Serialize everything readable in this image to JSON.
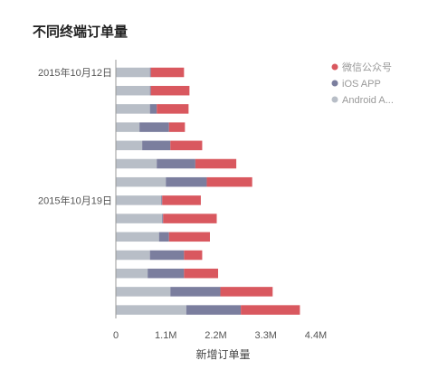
{
  "chart_data": {
    "type": "bar",
    "orientation": "horizontal",
    "stacked": true,
    "title": "不同终端订单量",
    "xlabel": "新增订单量",
    "ylabel": "",
    "y_tick_labels": [
      "2015年10月12日",
      "2015年10月19日"
    ],
    "y_tick_indices": [
      0,
      7
    ],
    "x_ticks": [
      "0",
      "1.1M",
      "2.2M",
      "3.3M",
      "4.4M"
    ],
    "xlim": [
      0,
      4.4
    ],
    "x_unit": "M",
    "categories": [
      "1",
      "2",
      "3",
      "4",
      "5",
      "6",
      "7",
      "8",
      "9",
      "10",
      "11",
      "12",
      "13",
      "14"
    ],
    "series": [
      {
        "name": "Android A...",
        "color": "#b8bec7",
        "values": [
          0.75,
          0.75,
          0.75,
          0.52,
          0.58,
          0.9,
          1.1,
          1.0,
          1.02,
          0.95,
          0.75,
          0.7,
          1.2,
          1.55
        ]
      },
      {
        "name": "iOS APP",
        "color": "#7b7e9e",
        "values": [
          0.02,
          0.02,
          0.15,
          0.65,
          0.62,
          0.85,
          0.9,
          0.02,
          0.02,
          0.22,
          0.75,
          0.8,
          1.1,
          1.2
        ]
      },
      {
        "name": "微信公众号",
        "color": "#d9585f",
        "values": [
          0.73,
          0.85,
          0.7,
          0.35,
          0.7,
          0.9,
          1.0,
          0.85,
          1.18,
          0.9,
          0.4,
          0.75,
          1.15,
          1.3
        ]
      }
    ],
    "legend_position": "top-right",
    "grid": false
  }
}
